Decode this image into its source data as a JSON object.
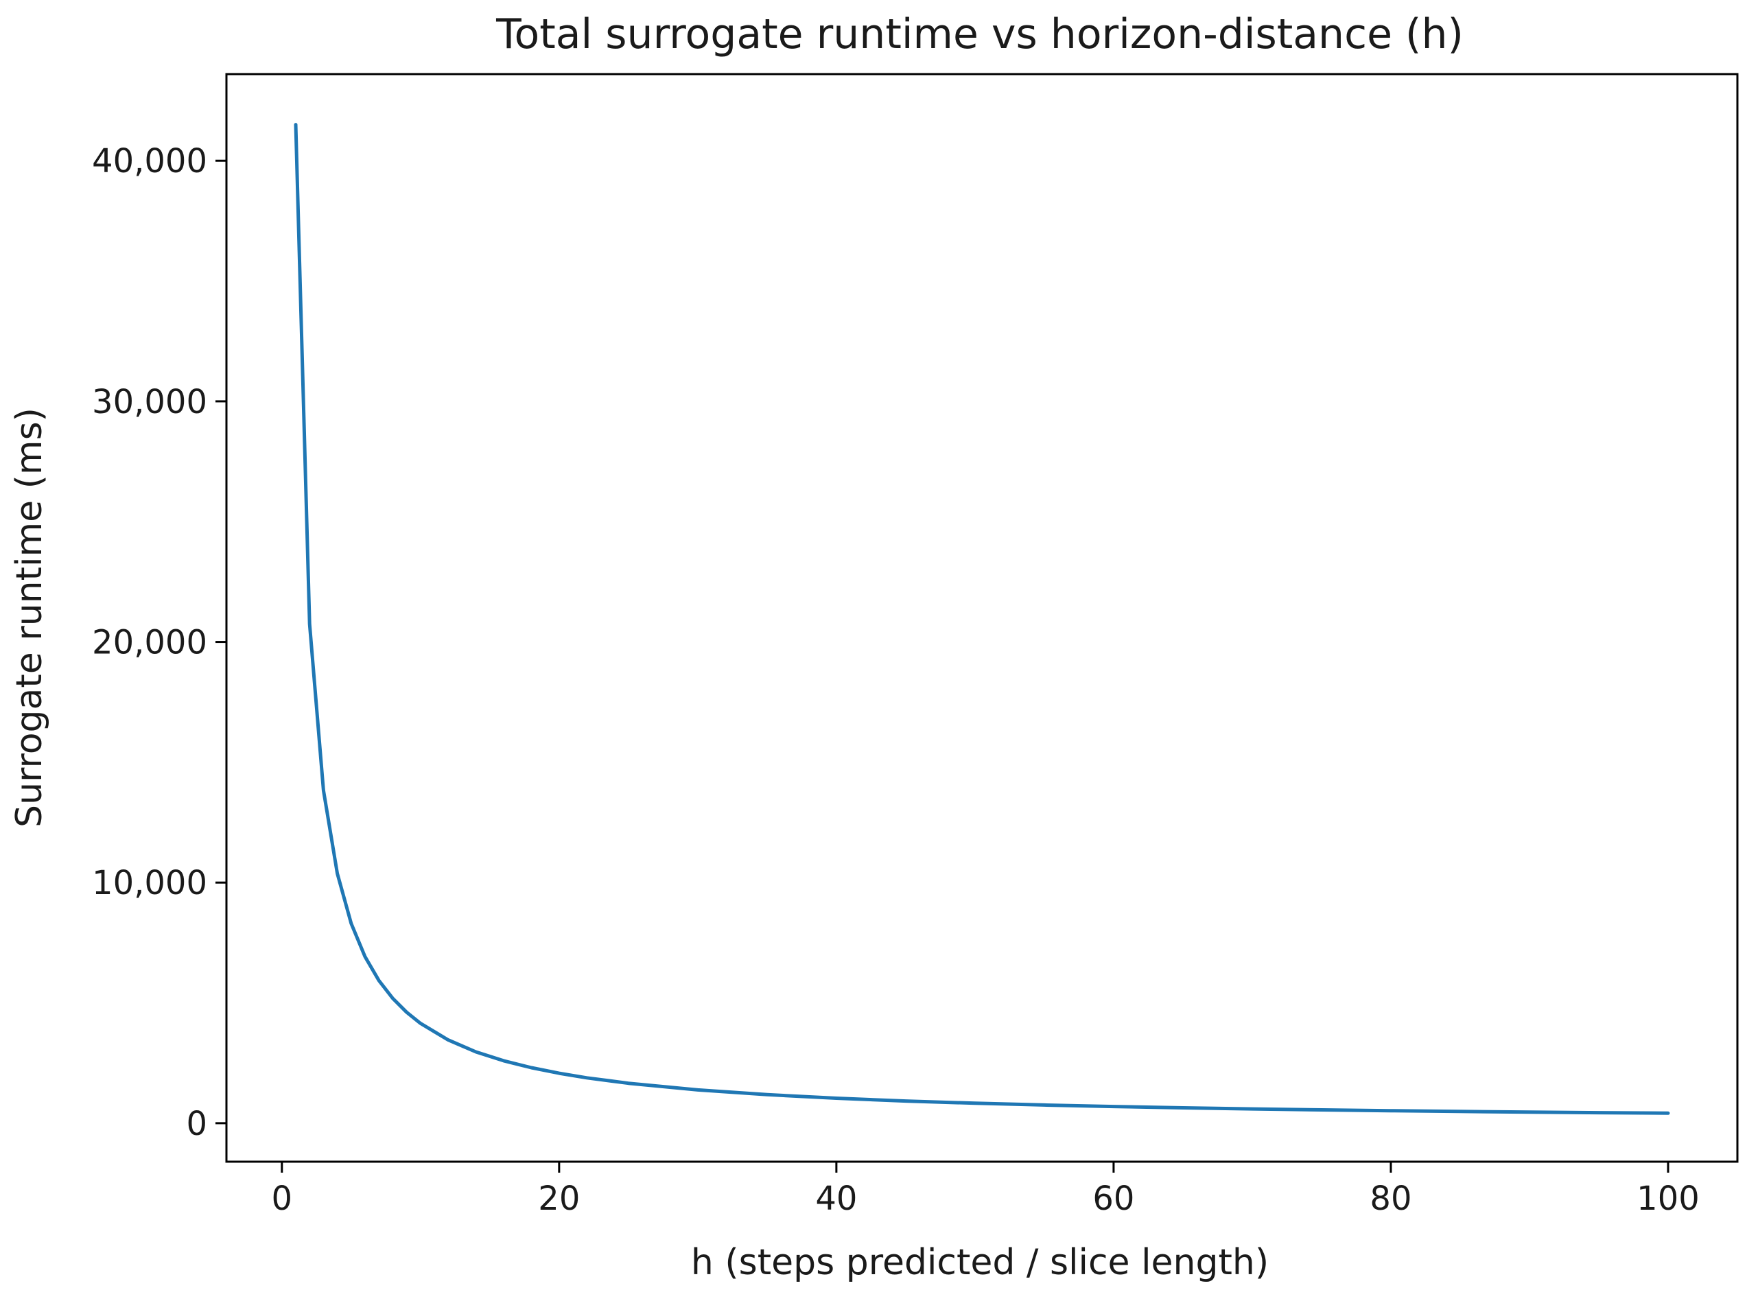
{
  "chart_data": {
    "type": "line",
    "title": "Total surrogate runtime vs horizon-distance (h)",
    "xlabel": "h (steps predicted / slice length)",
    "ylabel": "Surrogate runtime (ms)",
    "xlim": [
      -4,
      105
    ],
    "ylim": [
      -1600,
      43600
    ],
    "xticks": [
      0,
      20,
      40,
      60,
      80,
      100
    ],
    "xtick_labels": [
      "0",
      "20",
      "40",
      "60",
      "80",
      "100"
    ],
    "yticks": [
      0,
      10000,
      20000,
      30000,
      40000
    ],
    "ytick_labels": [
      "0",
      "10,000",
      "20,000",
      "30,000",
      "40,000"
    ],
    "grid": false,
    "legend": "none",
    "line_color": "#1f77b4",
    "series": [
      {
        "x": [
          1,
          2,
          3,
          4,
          5,
          6,
          7,
          8,
          9,
          10,
          12,
          14,
          16,
          18,
          20,
          22,
          25,
          30,
          35,
          40,
          45,
          50,
          55,
          60,
          65,
          70,
          75,
          80,
          85,
          90,
          95,
          100
        ],
        "values": [
          41500,
          20750,
          13833,
          10375,
          8300,
          6917,
          5929,
          5188,
          4611,
          4150,
          3458,
          2964,
          2594,
          2306,
          2075,
          1886,
          1660,
          1383,
          1186,
          1038,
          922,
          830,
          755,
          692,
          638,
          593,
          553,
          519,
          488,
          461,
          437,
          415
        ]
      }
    ]
  }
}
